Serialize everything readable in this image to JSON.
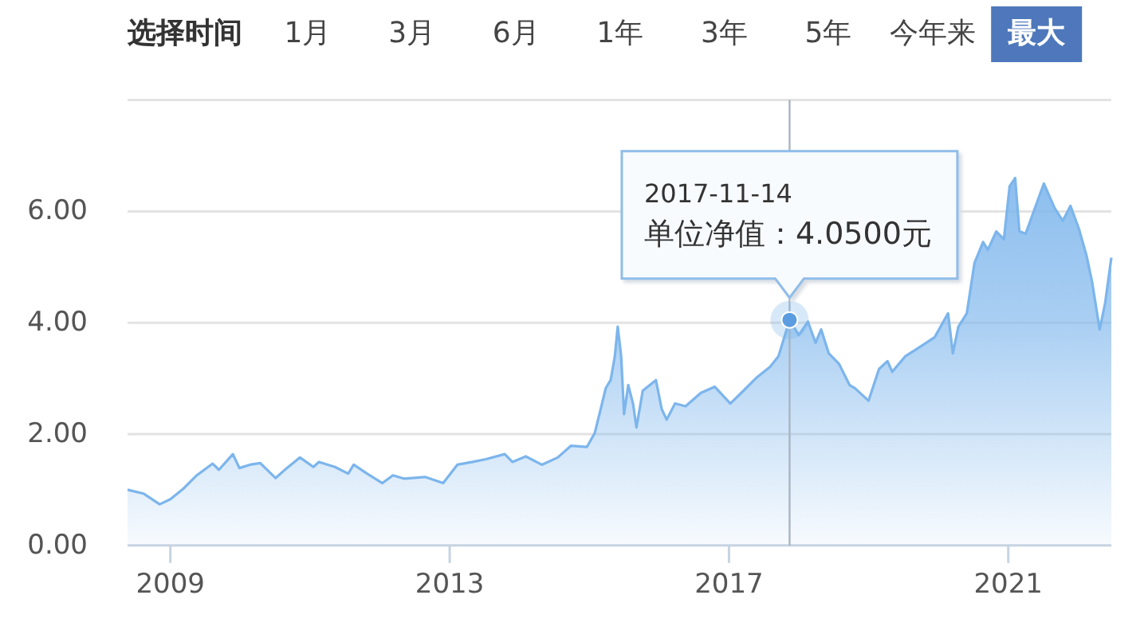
{
  "chart_data": {
    "type": "area",
    "title": "选择时间",
    "annotations": [
      "1月",
      "3月",
      "6月",
      "1年",
      "3年",
      "5年",
      "今年来",
      "最大",
      {
        "text": "2017-11-14\n单位净值：4.0500元",
        "x": "2017-11-14",
        "y": 4.05
      }
    ],
    "x": [
      "2008-05-22",
      "2008-08-15",
      "2008-11-06",
      "2009-01-01",
      "2009-03-10",
      "2009-05-19",
      "2009-08-10",
      "2009-09-12",
      "2009-11-24",
      "2009-12-28",
      "2010-02-21",
      "2010-04-16",
      "2010-07-05",
      "2010-09-02",
      "2010-11-10",
      "2011-01-19",
      "2011-02-17",
      "2011-05-12",
      "2011-07-20",
      "2011-08-18",
      "2011-10-27",
      "2012-01-15",
      "2012-03-10",
      "2012-05-08",
      "2012-08-25",
      "2012-11-28",
      "2013-02-10",
      "2013-05-01",
      "2013-07-09",
      "2013-10-16",
      "2013-11-25",
      "2014-02-03",
      "2014-04-28",
      "2014-07-20",
      "2014-09-27",
      "2014-12-20",
      "2015-01-30",
      "2015-03-29",
      "2015-04-23",
      "2015-05-15",
      "2015-05-30",
      "2015-06-17",
      "2015-07-02",
      "2015-07-24",
      "2015-08-18",
      "2015-09-05",
      "2015-10-08",
      "2015-12-16",
      "2016-01-15",
      "2016-02-10",
      "2016-03-25",
      "2016-05-19",
      "2016-08-07",
      "2016-10-19",
      "2017-01-08",
      "2017-03-18",
      "2017-05-27",
      "2017-08-04",
      "2017-09-17",
      "2017-11-14",
      "2018-01-01",
      "2018-02-18",
      "2018-03-30",
      "2018-04-28",
      "2018-06-07",
      "2018-07-31",
      "2018-09-24",
      "2018-10-23",
      "2019-01-01",
      "2019-02-25",
      "2019-04-10",
      "2019-05-05",
      "2019-07-13",
      "2019-09-20",
      "2019-12-13",
      "2020-02-21",
      "2020-03-17",
      "2020-04-15",
      "2020-05-29",
      "2020-07-08",
      "2020-08-22",
      "2020-09-16",
      "2020-10-30",
      "2020-12-09",
      "2021-01-08",
      "2021-02-06",
      "2021-02-28",
      "2021-04-02",
      "2021-05-12",
      "2021-07-06",
      "2021-08-30",
      "2021-10-13",
      "2021-11-22",
      "2022-01-05",
      "2022-02-14",
      "2022-03-15",
      "2022-04-24",
      "2022-05-23",
      "2022-06-24"
    ],
    "values": [
      1.0,
      0.93,
      0.74,
      0.83,
      1.02,
      1.26,
      1.47,
      1.36,
      1.64,
      1.39,
      1.45,
      1.48,
      1.21,
      1.39,
      1.58,
      1.41,
      1.5,
      1.41,
      1.29,
      1.45,
      1.29,
      1.12,
      1.26,
      1.2,
      1.23,
      1.12,
      1.45,
      1.5,
      1.55,
      1.64,
      1.5,
      1.6,
      1.45,
      1.58,
      1.79,
      1.77,
      2.02,
      2.83,
      2.97,
      3.4,
      3.93,
      3.4,
      2.36,
      2.88,
      2.55,
      2.12,
      2.78,
      2.97,
      2.45,
      2.26,
      2.55,
      2.5,
      2.74,
      2.85,
      2.55,
      2.78,
      3.02,
      3.21,
      3.4,
      4.05,
      3.78,
      4.02,
      3.64,
      3.88,
      3.45,
      3.26,
      2.88,
      2.82,
      2.6,
      3.17,
      3.31,
      3.12,
      3.4,
      3.55,
      3.74,
      4.17,
      3.45,
      3.93,
      4.17,
      5.07,
      5.45,
      5.31,
      5.64,
      5.5,
      6.45,
      6.6,
      5.64,
      5.6,
      5.98,
      6.5,
      6.07,
      5.83,
      6.1,
      5.69,
      5.21,
      4.74,
      3.88,
      4.36,
      5.17
    ],
    "color": "#7cb5ec",
    "xlim": [
      "2008-05-22",
      "2022-06-24"
    ],
    "xticks": [
      {
        "value": "2009-01-01",
        "label": "2009"
      },
      {
        "value": "2013-01-01",
        "label": "2013"
      },
      {
        "value": "2017-01-01",
        "label": "2017"
      },
      {
        "value": "2021-01-01",
        "label": "2021"
      }
    ],
    "ylim": [
      0,
      8
    ],
    "yticks": [
      {
        "value": 0,
        "label": "0.00"
      },
      {
        "value": 2,
        "label": "2.00"
      },
      {
        "value": 4,
        "label": "4.00"
      },
      {
        "value": 6,
        "label": "6.00"
      }
    ],
    "grid": "y",
    "ref_lines": [
      {
        "axis": "x",
        "value": "2017-11-14",
        "color": "#a9b4c3"
      }
    ]
  }
}
